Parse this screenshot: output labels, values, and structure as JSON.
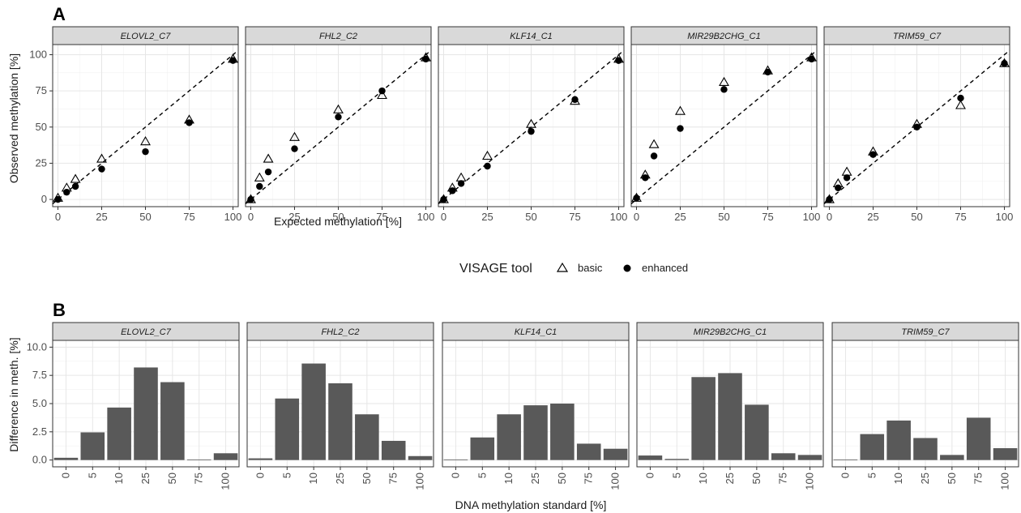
{
  "figure": {
    "panel_a_tag": "A",
    "panel_b_tag": "B",
    "legend": {
      "title": "VISAGE tool",
      "items": [
        {
          "label": "basic",
          "marker": "open-triangle"
        },
        {
          "label": "enhanced",
          "marker": "filled-circle"
        }
      ]
    },
    "colors": {
      "strip": "#d9d9d9",
      "bar": "#595959",
      "grid": "#e6e6e6"
    }
  },
  "chart_data": [
    {
      "type": "scatter",
      "panel": "A",
      "xlabel": "Expected methylation [%]",
      "ylabel": "Observed methylation [%]",
      "xlim": [
        -3,
        103
      ],
      "ylim": [
        -5,
        107
      ],
      "xticks": [
        0,
        25,
        50,
        75,
        100
      ],
      "yticks": [
        0,
        25,
        50,
        75,
        100
      ],
      "grid": true,
      "reference_line": "y = x (dashed)",
      "facets": [
        {
          "title": "ELOVL2_C7",
          "basic": [
            [
              0,
              1
            ],
            [
              5,
              8
            ],
            [
              10,
              14
            ],
            [
              25,
              28
            ],
            [
              50,
              40
            ],
            [
              75,
              55
            ],
            [
              100,
              97
            ]
          ],
          "enhanced": [
            [
              0,
              0
            ],
            [
              5,
              5
            ],
            [
              10,
              9
            ],
            [
              25,
              21
            ],
            [
              50,
              33
            ],
            [
              75,
              53
            ],
            [
              100,
              96
            ]
          ]
        },
        {
          "title": "FHL2_C2",
          "basic": [
            [
              0,
              0
            ],
            [
              5,
              15
            ],
            [
              10,
              28
            ],
            [
              25,
              43
            ],
            [
              50,
              62
            ],
            [
              75,
              72
            ],
            [
              100,
              98
            ]
          ],
          "enhanced": [
            [
              0,
              0
            ],
            [
              5,
              9
            ],
            [
              10,
              19
            ],
            [
              25,
              35
            ],
            [
              50,
              57
            ],
            [
              75,
              75
            ],
            [
              100,
              97
            ]
          ]
        },
        {
          "title": "KLF14_C1",
          "basic": [
            [
              0,
              0
            ],
            [
              5,
              8
            ],
            [
              10,
              15
            ],
            [
              25,
              30
            ],
            [
              50,
              52
            ],
            [
              75,
              68
            ],
            [
              100,
              97
            ]
          ],
          "enhanced": [
            [
              0,
              0
            ],
            [
              5,
              6
            ],
            [
              10,
              11
            ],
            [
              25,
              23
            ],
            [
              50,
              47
            ],
            [
              75,
              69
            ],
            [
              100,
              96
            ]
          ]
        },
        {
          "title": "MIR29B2CHG_C1",
          "basic": [
            [
              0,
              1
            ],
            [
              5,
              17
            ],
            [
              10,
              38
            ],
            [
              25,
              61
            ],
            [
              50,
              81
            ],
            [
              75,
              89
            ],
            [
              100,
              98
            ]
          ],
          "enhanced": [
            [
              0,
              1
            ],
            [
              5,
              15
            ],
            [
              10,
              30
            ],
            [
              25,
              49
            ],
            [
              50,
              76
            ],
            [
              75,
              88
            ],
            [
              100,
              97
            ]
          ]
        },
        {
          "title": "TRIM59_C7",
          "basic": [
            [
              0,
              0
            ],
            [
              5,
              11
            ],
            [
              10,
              19
            ],
            [
              25,
              33
            ],
            [
              50,
              52
            ],
            [
              75,
              65
            ],
            [
              100,
              94
            ]
          ],
          "enhanced": [
            [
              0,
              0
            ],
            [
              5,
              8
            ],
            [
              10,
              15
            ],
            [
              25,
              31
            ],
            [
              50,
              50
            ],
            [
              75,
              70
            ],
            [
              100,
              94
            ]
          ]
        }
      ]
    },
    {
      "type": "bar",
      "panel": "B",
      "xlabel": "DNA methylation standard [%]",
      "ylabel": "Difference in meth. [%]",
      "ylim": [
        -0.6,
        10.6
      ],
      "yticks": [
        0.0,
        2.5,
        5.0,
        7.5,
        10.0
      ],
      "ytick_labels": [
        "0.0",
        "2.5",
        "5.0",
        "7.5",
        "10.0"
      ],
      "categories": [
        "0",
        "5",
        "10",
        "25",
        "50",
        "75",
        "100"
      ],
      "grid": true,
      "facets": [
        {
          "title": "ELOVL2_C7",
          "values": [
            0.2,
            2.45,
            4.65,
            8.2,
            6.9,
            0.05,
            0.6
          ]
        },
        {
          "title": "FHL2_C2",
          "values": [
            0.15,
            5.45,
            8.55,
            6.8,
            4.05,
            1.7,
            0.35
          ]
        },
        {
          "title": "KLF14_C1",
          "values": [
            0.05,
            2.0,
            4.05,
            4.85,
            5.0,
            1.45,
            1.0
          ]
        },
        {
          "title": "MIR29B2CHG_C1",
          "values": [
            0.4,
            0.1,
            7.35,
            7.7,
            4.9,
            0.6,
            0.45
          ]
        },
        {
          "title": "TRIM59_C7",
          "values": [
            0.05,
            2.3,
            3.5,
            1.95,
            0.45,
            3.75,
            1.05
          ]
        }
      ]
    }
  ]
}
